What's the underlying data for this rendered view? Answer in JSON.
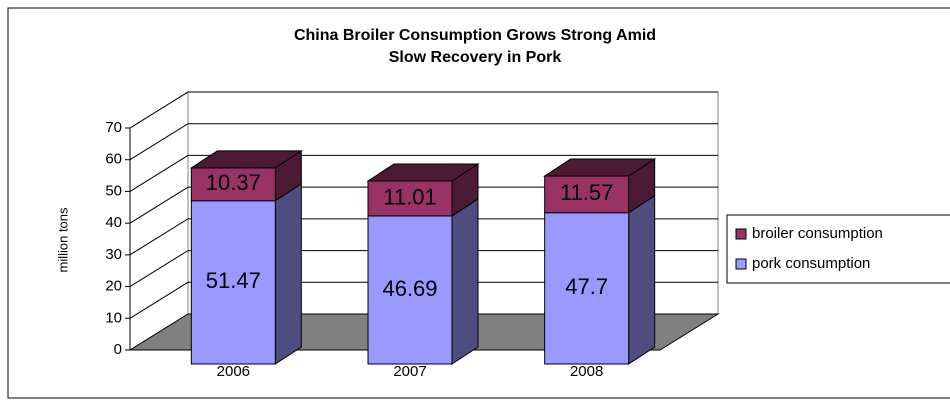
{
  "chart_data": {
    "type": "bar3d_stacked",
    "title": [
      "China Broiler Consumption Grows Strong Amid",
      "Slow Recovery in Pork"
    ],
    "ylabel": "million tons",
    "categories": [
      "2006",
      "2007",
      "2008"
    ],
    "series": [
      {
        "name": "pork consumption",
        "color": "#9999ff",
        "side": "#4d4d80",
        "values": [
          51.47,
          46.69,
          47.7
        ]
      },
      {
        "name": "broiler consumption",
        "color": "#993366",
        "side": "#4d1a33",
        "values": [
          10.37,
          11.01,
          11.57
        ]
      }
    ],
    "ylim": [
      0,
      70
    ],
    "yticks": [
      0,
      10,
      20,
      30,
      40,
      50,
      60,
      70
    ],
    "grid": true,
    "legend": "right"
  }
}
